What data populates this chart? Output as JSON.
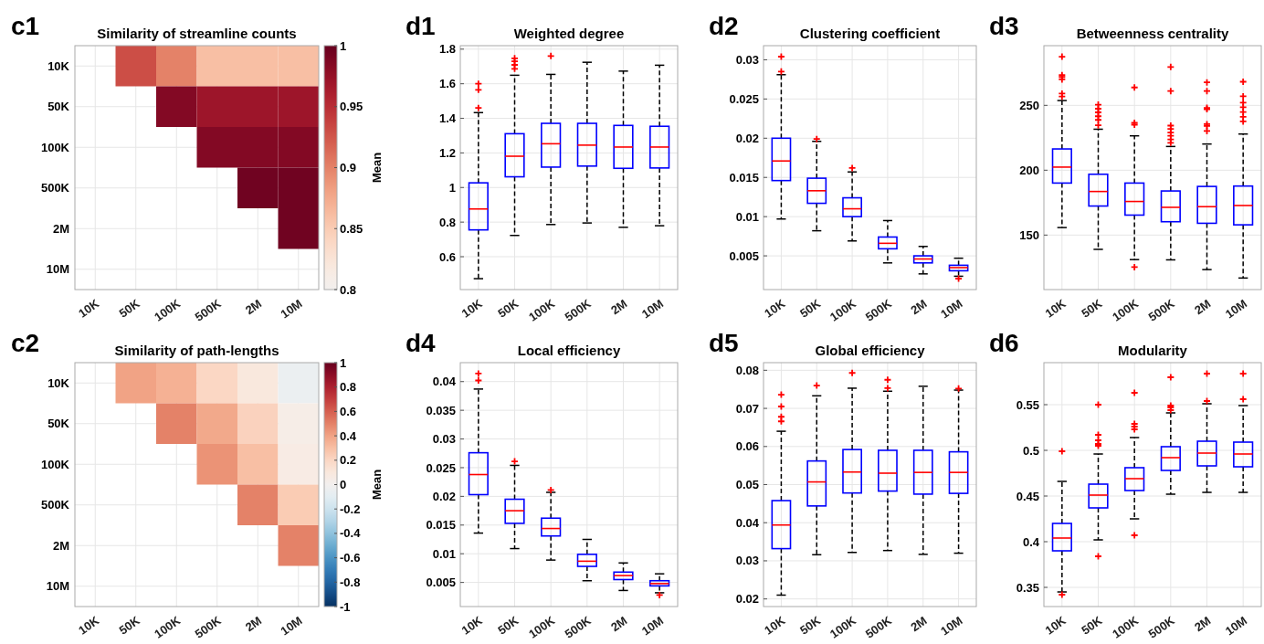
{
  "chart_data": [
    {
      "type": "heatmap",
      "title": "Similarity of streamline counts",
      "annotations": [
        "c1"
      ],
      "categories": [
        "10K",
        "50K",
        "100K",
        "500K",
        "2M",
        "10M"
      ],
      "y_categories": [
        "10K",
        "50K",
        "100K",
        "500K",
        "2M",
        "10M"
      ],
      "cells": [
        [
          null,
          0.93,
          0.9,
          0.86,
          0.86,
          0.86
        ],
        [
          null,
          null,
          0.985,
          0.97,
          0.97,
          0.97
        ],
        [
          null,
          null,
          null,
          0.985,
          0.985,
          0.985
        ],
        [
          null,
          null,
          null,
          null,
          0.995,
          0.995
        ],
        [
          null,
          null,
          null,
          null,
          null,
          0.995
        ],
        [
          null,
          null,
          null,
          null,
          null,
          null
        ]
      ],
      "clim": [
        0.8,
        1
      ],
      "cticks": [
        0.8,
        0.85,
        0.9,
        0.95,
        1
      ],
      "clabel": "Mean",
      "grid": true
    },
    {
      "type": "box",
      "title": "Weighted degree",
      "annotations": [
        "d1"
      ],
      "categories": [
        "10K",
        "50K",
        "100K",
        "500K",
        "2M",
        "10M"
      ],
      "ylim": [
        0.41,
        1.82
      ],
      "yticks": [
        0.6,
        0.8,
        1,
        1.2,
        1.4,
        1.6,
        1.8
      ],
      "grid": true,
      "boxes": [
        {
          "low": 0.473,
          "q1": 0.755,
          "median": 0.876,
          "q3": 1.027,
          "high": 1.433,
          "outliers": [
            1.6,
            1.565,
            1.46
          ]
        },
        {
          "low": 0.723,
          "q1": 1.062,
          "median": 1.181,
          "q3": 1.311,
          "high": 1.649,
          "outliers": [
            1.747,
            1.73,
            1.709,
            1.686
          ]
        },
        {
          "low": 0.786,
          "q1": 1.118,
          "median": 1.253,
          "q3": 1.371,
          "high": 1.654,
          "outliers": [
            1.76
          ]
        },
        {
          "low": 0.795,
          "q1": 1.124,
          "median": 1.245,
          "q3": 1.371,
          "high": 1.724
        },
        {
          "low": 0.77,
          "q1": 1.111,
          "median": 1.234,
          "q3": 1.359,
          "high": 1.673
        },
        {
          "low": 0.779,
          "q1": 1.113,
          "median": 1.234,
          "q3": 1.354,
          "high": 1.707
        }
      ]
    },
    {
      "type": "box",
      "title": "Clustering coefficient",
      "annotations": [
        "d2"
      ],
      "categories": [
        "10K",
        "50K",
        "100K",
        "500K",
        "2M",
        "10M"
      ],
      "ylim": [
        0.0007,
        0.0318
      ],
      "yticks": [
        0.005,
        0.01,
        0.015,
        0.02,
        0.025,
        0.03
      ],
      "grid": true,
      "boxes": [
        {
          "low": 0.0097,
          "q1": 0.0146,
          "median": 0.0171,
          "q3": 0.02,
          "high": 0.0281,
          "outliers": [
            0.0304,
            0.0285
          ]
        },
        {
          "low": 0.0082,
          "q1": 0.0117,
          "median": 0.0133,
          "q3": 0.0149,
          "high": 0.0196,
          "outliers": [
            0.0199
          ]
        },
        {
          "low": 0.0069,
          "q1": 0.01,
          "median": 0.011,
          "q3": 0.0124,
          "high": 0.0157,
          "outliers": [
            0.0162
          ]
        },
        {
          "low": 0.0041,
          "q1": 0.0059,
          "median": 0.0066,
          "q3": 0.0074,
          "high": 0.0095
        },
        {
          "low": 0.0027,
          "q1": 0.0041,
          "median": 0.0046,
          "q3": 0.005,
          "high": 0.0062
        },
        {
          "low": 0.0024,
          "q1": 0.0031,
          "median": 0.0035,
          "q3": 0.0038,
          "high": 0.0047,
          "outliers": [
            0.0021
          ]
        }
      ]
    },
    {
      "type": "box",
      "title": "Betweenness centrality",
      "annotations": [
        "d3"
      ],
      "categories": [
        "10K",
        "50K",
        "100K",
        "500K",
        "2M",
        "10M"
      ],
      "ylim": [
        108,
        296
      ],
      "yticks": [
        150,
        200,
        250
      ],
      "grid": true,
      "boxes": [
        {
          "low": 155.8,
          "q1": 190.1,
          "median": 202.4,
          "q3": 216.4,
          "high": 253.7,
          "outliers": [
            287.5,
            273.3,
            271.9,
            270,
            259.1,
            256.8
          ]
        },
        {
          "low": 139,
          "q1": 172.4,
          "median": 183.6,
          "q3": 196.9,
          "high": 231.6,
          "outliers": [
            250.5,
            247.4,
            244.6,
            241.6,
            238.8,
            234.6
          ]
        },
        {
          "low": 131.1,
          "q1": 165.4,
          "median": 175.9,
          "q3": 190.1,
          "high": 226.5,
          "outliers": [
            263.8,
            236.5,
            235.1,
            125.3
          ]
        },
        {
          "low": 130.9,
          "q1": 160.3,
          "median": 171.4,
          "q3": 184,
          "high": 218.3,
          "outliers": [
            279.6,
            261,
            234.4,
            231.8,
            229,
            226.5,
            223.7,
            221.1
          ]
        },
        {
          "low": 123.4,
          "q1": 159.1,
          "median": 171.9,
          "q3": 187.5,
          "high": 220.2,
          "outliers": [
            267.7,
            261,
            248.1,
            247,
            235.5,
            234.1,
            230.2
          ]
        },
        {
          "low": 116.9,
          "q1": 157.9,
          "median": 172.8,
          "q3": 187.8,
          "high": 227.9,
          "outliers": [
            268.2,
            257,
            252.1,
            248.6,
            244.9,
            241.1,
            237.6
          ]
        }
      ]
    },
    {
      "type": "heatmap",
      "title": "Similarity of path-lengths",
      "annotations": [
        "c2"
      ],
      "categories": [
        "10K",
        "50K",
        "100K",
        "500K",
        "2M",
        "10M"
      ],
      "y_categories": [
        "10K",
        "50K",
        "100K",
        "500K",
        "2M",
        "10M"
      ],
      "cells": [
        [
          null,
          0.4,
          0.35,
          0.2,
          0.1,
          -0.05
        ],
        [
          null,
          null,
          0.5,
          0.38,
          0.22,
          0.05
        ],
        [
          null,
          null,
          null,
          0.45,
          0.3,
          0.07
        ],
        [
          null,
          null,
          null,
          null,
          0.5,
          0.25
        ],
        [
          null,
          null,
          null,
          null,
          null,
          0.5
        ],
        [
          null,
          null,
          null,
          null,
          null,
          null
        ]
      ],
      "clim": [
        -1,
        1
      ],
      "cticks": [
        -1,
        -0.8,
        -0.6,
        -0.4,
        -0.2,
        0,
        0.2,
        0.4,
        0.6,
        0.8,
        1
      ],
      "clabel": "Mean",
      "grid": true
    },
    {
      "type": "box",
      "title": "Local efficiency",
      "annotations": [
        "d4"
      ],
      "categories": [
        "10K",
        "50K",
        "100K",
        "500K",
        "2M",
        "10M"
      ],
      "ylim": [
        0.0008,
        0.0433
      ],
      "yticks": [
        0.005,
        0.01,
        0.015,
        0.02,
        0.025,
        0.03,
        0.035,
        0.04
      ],
      "grid": true,
      "boxes": [
        {
          "low": 0.0136,
          "q1": 0.0203,
          "median": 0.0238,
          "q3": 0.0276,
          "high": 0.0387,
          "outliers": [
            0.0414,
            0.0402
          ]
        },
        {
          "low": 0.0109,
          "q1": 0.0153,
          "median": 0.0175,
          "q3": 0.0195,
          "high": 0.0254,
          "outliers": [
            0.0261
          ]
        },
        {
          "low": 0.0089,
          "q1": 0.0131,
          "median": 0.0144,
          "q3": 0.0162,
          "high": 0.0207,
          "outliers": [
            0.0211
          ]
        },
        {
          "low": 0.0053,
          "q1": 0.0078,
          "median": 0.0087,
          "q3": 0.0099,
          "high": 0.0125
        },
        {
          "low": 0.0036,
          "q1": 0.0055,
          "median": 0.0062,
          "q3": 0.0068,
          "high": 0.0084
        },
        {
          "low": 0.0032,
          "q1": 0.0044,
          "median": 0.0048,
          "q3": 0.0053,
          "high": 0.0065,
          "outliers": [
            0.0028
          ]
        }
      ]
    },
    {
      "type": "box",
      "title": "Global efficiency",
      "annotations": [
        "d5"
      ],
      "categories": [
        "10K",
        "50K",
        "100K",
        "500K",
        "2M",
        "10M"
      ],
      "ylim": [
        0.018,
        0.082
      ],
      "yticks": [
        0.02,
        0.03,
        0.04,
        0.05,
        0.06,
        0.07,
        0.08
      ],
      "grid": true,
      "boxes": [
        {
          "low": 0.021,
          "q1": 0.0332,
          "median": 0.0394,
          "q3": 0.0458,
          "high": 0.064,
          "outliers": [
            0.0736,
            0.0705,
            0.0678,
            0.0666
          ]
        },
        {
          "low": 0.0316,
          "q1": 0.0444,
          "median": 0.0507,
          "q3": 0.0562,
          "high": 0.0733,
          "outliers": [
            0.076
          ]
        },
        {
          "low": 0.0322,
          "q1": 0.0478,
          "median": 0.0533,
          "q3": 0.0592,
          "high": 0.0753,
          "outliers": [
            0.0793
          ]
        },
        {
          "low": 0.0327,
          "q1": 0.0483,
          "median": 0.053,
          "q3": 0.059,
          "high": 0.0745,
          "outliers": [
            0.0775,
            0.0753
          ]
        },
        {
          "low": 0.0317,
          "q1": 0.0475,
          "median": 0.0532,
          "q3": 0.059,
          "high": 0.0758
        },
        {
          "low": 0.032,
          "q1": 0.0477,
          "median": 0.0532,
          "q3": 0.0586,
          "high": 0.0748,
          "outliers": [
            0.0752
          ]
        }
      ]
    },
    {
      "type": "box",
      "title": "Modularity",
      "annotations": [
        "d6"
      ],
      "categories": [
        "10K",
        "50K",
        "100K",
        "500K",
        "2M",
        "10M"
      ],
      "ylim": [
        0.329,
        0.596
      ],
      "yticks": [
        0.35,
        0.4,
        0.45,
        0.5,
        0.55
      ],
      "grid": true,
      "boxes": [
        {
          "low": 0.345,
          "q1": 0.39,
          "median": 0.404,
          "q3": 0.42,
          "high": 0.466,
          "outliers": [
            0.499,
            0.342
          ]
        },
        {
          "low": 0.402,
          "q1": 0.437,
          "median": 0.451,
          "q3": 0.463,
          "high": 0.496,
          "outliers": [
            0.55,
            0.517,
            0.511,
            0.507,
            0.505,
            0.384
          ]
        },
        {
          "low": 0.425,
          "q1": 0.456,
          "median": 0.469,
          "q3": 0.481,
          "high": 0.514,
          "outliers": [
            0.563,
            0.529,
            0.526,
            0.523,
            0.407
          ]
        },
        {
          "low": 0.452,
          "q1": 0.478,
          "median": 0.492,
          "q3": 0.504,
          "high": 0.541,
          "outliers": [
            0.58,
            0.549,
            0.547,
            0.544
          ]
        },
        {
          "low": 0.454,
          "q1": 0.483,
          "median": 0.497,
          "q3": 0.51,
          "high": 0.551,
          "outliers": [
            0.584,
            0.554
          ]
        },
        {
          "low": 0.454,
          "q1": 0.482,
          "median": 0.496,
          "q3": 0.509,
          "high": 0.549,
          "outliers": [
            0.584,
            0.556
          ]
        }
      ]
    }
  ]
}
